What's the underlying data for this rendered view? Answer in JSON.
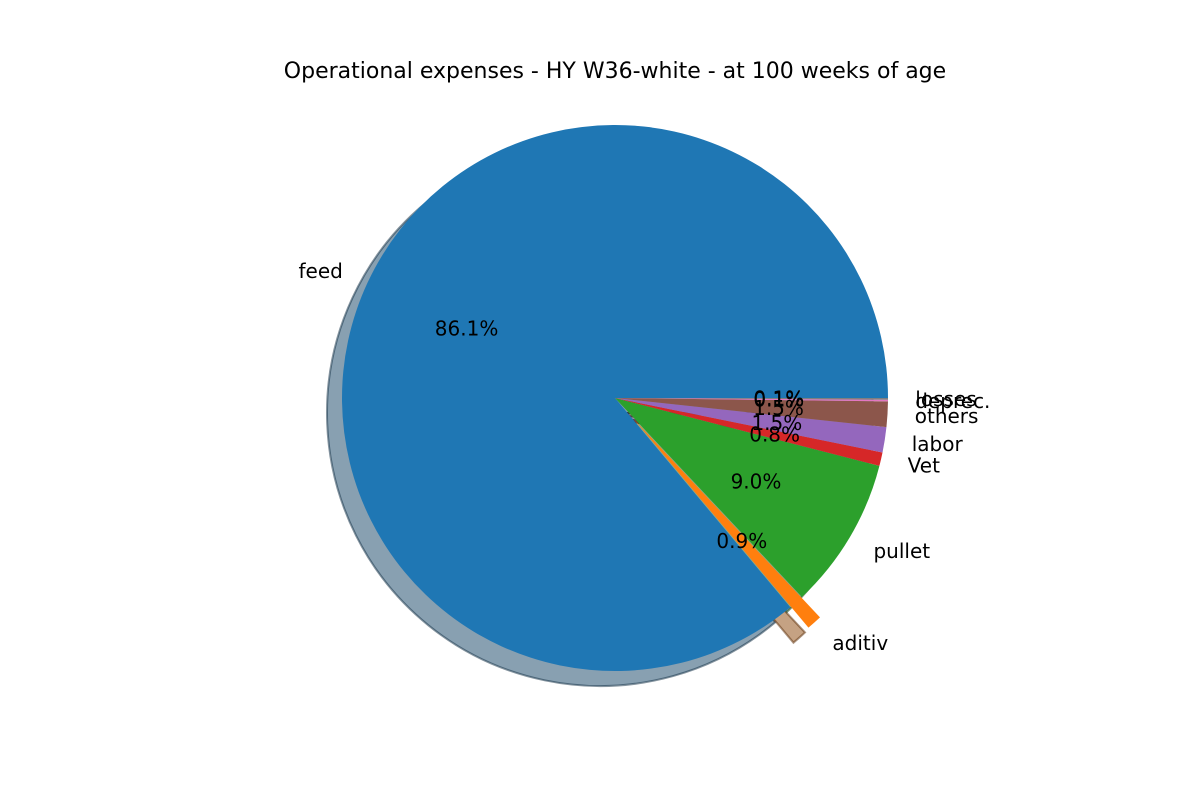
{
  "chart_data": {
    "type": "pie",
    "title": "Operational expenses - HY W36-white -  at 100 weeks of age",
    "start_angle_deg": 0,
    "direction": "counterclockwise",
    "shadow": true,
    "slices": [
      {
        "label": "feed",
        "pct_label": "86.1%",
        "value": 86.1,
        "color": "#1f77b4",
        "exploded": false
      },
      {
        "label": "aditiv",
        "pct_label": "0.9%",
        "value": 0.9,
        "color": "#ff7f0e",
        "exploded": true
      },
      {
        "label": "pullet",
        "pct_label": "9.0%",
        "value": 9.0,
        "color": "#2ca02c",
        "exploded": false
      },
      {
        "label": "Vet",
        "pct_label": "0.8%",
        "value": 0.8,
        "color": "#d62728",
        "exploded": false
      },
      {
        "label": "labor",
        "pct_label": "1.5%",
        "value": 1.5,
        "color": "#9467bd",
        "exploded": false
      },
      {
        "label": "others",
        "pct_label": "1.5%",
        "value": 1.5,
        "color": "#8c564b",
        "exploded": false
      },
      {
        "label": "depreс.",
        "pct_label": "0.1%",
        "value": 0.1,
        "color": "#e377c2",
        "exploded": false
      },
      {
        "label": "losses",
        "pct_label": "0.1%",
        "value": 0.1,
        "color": "#7f7f7f",
        "exploded": false
      }
    ]
  }
}
